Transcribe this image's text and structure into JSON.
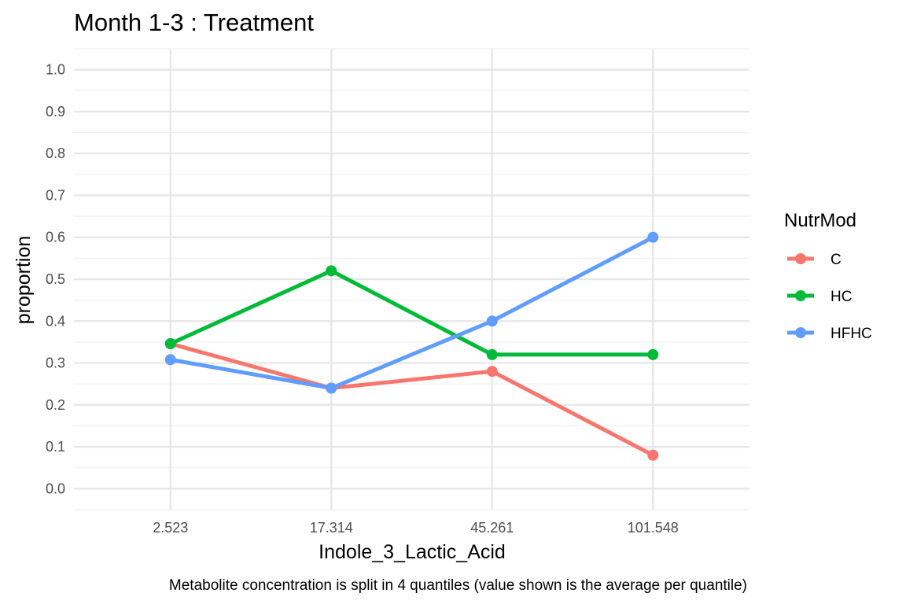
{
  "chart_data": {
    "type": "line",
    "title": "Month 1-3 : Treatment",
    "xlabel": "Indole_3_Lactic_Acid",
    "ylabel": "proportion",
    "caption": "Metabolite concentration is split in 4 quantiles (value shown is the average per quantile)",
    "categories": [
      "2.523",
      "17.314",
      "45.261",
      "101.548"
    ],
    "y_ticks": [
      "0.0",
      "0.1",
      "0.2",
      "0.3",
      "0.4",
      "0.5",
      "0.6",
      "0.7",
      "0.8",
      "0.9",
      "1.0"
    ],
    "ylim": [
      -0.05,
      1.05
    ],
    "grid": true,
    "legend": {
      "title": "NutrMod",
      "position": "right"
    },
    "series": [
      {
        "name": "C",
        "color": "#F8766D",
        "values": [
          0.346,
          0.24,
          0.28,
          0.08
        ]
      },
      {
        "name": "HC",
        "color": "#00BA38",
        "values": [
          0.346,
          0.52,
          0.32,
          0.32
        ]
      },
      {
        "name": "HFHC",
        "color": "#619CFF",
        "values": [
          0.308,
          0.24,
          0.4,
          0.6
        ]
      }
    ]
  }
}
